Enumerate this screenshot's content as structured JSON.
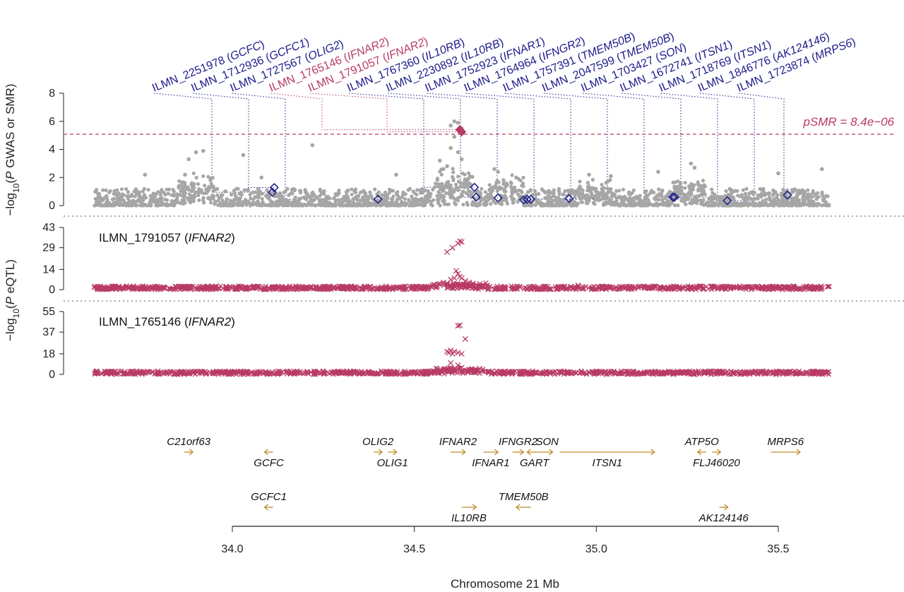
{
  "colors": {
    "gwas_points": "#a6a6a6",
    "probe_marker": "#1c1c8c",
    "highlight": "#b83a66",
    "eqtl": "#b83a66",
    "gene_arrow": "#c08a2a",
    "axis": "#222222"
  },
  "chart_data": [
    {
      "type": "scatter",
      "panel": "gwas_smr",
      "ylabel": "−log10(P GWAS or SMR)",
      "ylabel_parts": [
        "−log",
        "10",
        "(",
        "P",
        " GWAS or SMR)"
      ],
      "yticks": [
        "0",
        "2",
        "4",
        "6",
        "8"
      ],
      "ylim": [
        0,
        8
      ],
      "xlim": [
        33.6,
        35.9
      ],
      "threshold": {
        "value": 5.08,
        "label": "pSMR = 8.4e−06"
      },
      "gwas_series": {
        "name": "",
        "description_only": false,
        "background_range": [
          33.62,
          35.64
        ],
        "background_level": [
          0,
          1.1
        ],
        "peaks": [
          {
            "x": 34.61,
            "y": 6.0
          },
          {
            "x": 34.62,
            "y": 5.9
          },
          {
            "x": 34.6,
            "y": 5.7
          },
          {
            "x": 34.63,
            "y": 5.5
          },
          {
            "x": 34.61,
            "y": 4.9
          },
          {
            "x": 34.6,
            "y": 4.1
          },
          {
            "x": 34.62,
            "y": 3.8
          },
          {
            "x": 34.63,
            "y": 3.3
          },
          {
            "x": 34.59,
            "y": 2.8
          },
          {
            "x": 33.92,
            "y": 3.9
          },
          {
            "x": 33.9,
            "y": 3.8
          },
          {
            "x": 33.88,
            "y": 3.3
          },
          {
            "x": 33.87,
            "y": 2.2
          },
          {
            "x": 34.03,
            "y": 3.6
          },
          {
            "x": 34.22,
            "y": 4.3
          },
          {
            "x": 33.76,
            "y": 2.2
          },
          {
            "x": 34.57,
            "y": 3.2
          },
          {
            "x": 34.58,
            "y": 2.6
          },
          {
            "x": 34.72,
            "y": 2.6
          },
          {
            "x": 34.73,
            "y": 2.4
          },
          {
            "x": 34.78,
            "y": 2.0
          },
          {
            "x": 34.98,
            "y": 2.2
          },
          {
            "x": 35.04,
            "y": 2.1
          },
          {
            "x": 35.17,
            "y": 2.4
          },
          {
            "x": 35.26,
            "y": 3.0
          },
          {
            "x": 35.27,
            "y": 2.7
          },
          {
            "x": 35.5,
            "y": 2.3
          },
          {
            "x": 35.62,
            "y": 2.6
          },
          {
            "x": 34.45,
            "y": 2.2
          },
          {
            "x": 34.08,
            "y": 2.0
          }
        ]
      },
      "smr_probes": [
        {
          "probe": "ILMN_2251978",
          "gene": "GCFC",
          "x": 34.11,
          "y": 0.95,
          "highlight": false
        },
        {
          "probe": "ILMN_1712936",
          "gene": "GCFC1",
          "x": 34.115,
          "y": 1.28,
          "highlight": false
        },
        {
          "probe": "ILMN_1727567",
          "gene": "OLIG2",
          "x": 34.4,
          "y": 0.45,
          "highlight": false
        },
        {
          "probe": "ILMN_1765146",
          "gene": "IFNAR2",
          "x": 34.625,
          "y": 5.4,
          "highlight": true
        },
        {
          "probe": "ILMN_1791057",
          "gene": "IFNAR2",
          "x": 34.63,
          "y": 5.25,
          "highlight": true
        },
        {
          "probe": "ILMN_1767360",
          "gene": "IL10RB",
          "x": 34.665,
          "y": 1.3,
          "highlight": false
        },
        {
          "probe": "ILMN_2230892",
          "gene": "IL10RB",
          "x": 34.67,
          "y": 0.6,
          "highlight": false
        },
        {
          "probe": "ILMN_1752923",
          "gene": "IFNAR1",
          "x": 34.73,
          "y": 0.55,
          "highlight": false
        },
        {
          "probe": "ILMN_1764964",
          "gene": "IFNGR2",
          "x": 34.8,
          "y": 0.4,
          "highlight": false
        },
        {
          "probe": "ILMN_1757391",
          "gene": "TMEM50B",
          "x": 34.81,
          "y": 0.45,
          "highlight": false
        },
        {
          "probe": "ILMN_2047599",
          "gene": "TMEM50B",
          "x": 34.82,
          "y": 0.45,
          "highlight": false
        },
        {
          "probe": "ILMN_1703427",
          "gene": "SON",
          "x": 34.925,
          "y": 0.5,
          "highlight": false
        },
        {
          "probe": "ILMN_1672741",
          "gene": "ITSN1",
          "x": 35.21,
          "y": 0.6,
          "highlight": false
        },
        {
          "probe": "ILMN_1718769",
          "gene": "ITSN1",
          "x": 35.215,
          "y": 0.6,
          "highlight": false
        },
        {
          "probe": "ILMN_1846776",
          "gene": "AK124146",
          "x": 35.36,
          "y": 0.35,
          "highlight": false
        },
        {
          "probe": "ILMN_1723874",
          "gene": "MRPS6",
          "x": 35.525,
          "y": 0.75,
          "highlight": false
        }
      ]
    },
    {
      "type": "scatter",
      "panel": "eqtl_1",
      "title_probe": "ILMN_1791057",
      "title_gene": "IFNAR2",
      "yticks": [
        "0",
        "14",
        "29",
        "43"
      ],
      "ylim": [
        0,
        43
      ],
      "peaks": [
        {
          "x": 34.625,
          "y": 33.5
        },
        {
          "x": 34.62,
          "y": 32
        },
        {
          "x": 34.63,
          "y": 33
        },
        {
          "x": 34.605,
          "y": 29
        },
        {
          "x": 34.59,
          "y": 26
        },
        {
          "x": 34.615,
          "y": 13
        },
        {
          "x": 34.62,
          "y": 11
        },
        {
          "x": 34.625,
          "y": 9
        },
        {
          "x": 34.61,
          "y": 8
        },
        {
          "x": 34.6,
          "y": 7
        },
        {
          "x": 34.63,
          "y": 8
        },
        {
          "x": 34.64,
          "y": 6
        },
        {
          "x": 34.58,
          "y": 5
        },
        {
          "x": 34.57,
          "y": 4
        },
        {
          "x": 34.65,
          "y": 5
        },
        {
          "x": 34.55,
          "y": 3
        },
        {
          "x": 34.66,
          "y": 3
        },
        {
          "x": 34.68,
          "y": 4
        },
        {
          "x": 34.7,
          "y": 3
        },
        {
          "x": 34.95,
          "y": 3
        }
      ],
      "background_range": [
        33.62,
        35.64
      ],
      "background_level": [
        0,
        2.5
      ]
    },
    {
      "type": "scatter",
      "panel": "eqtl_2",
      "title_probe": "ILMN_1765146",
      "title_gene": "IFNAR2",
      "yticks": [
        "0",
        "18",
        "37",
        "55"
      ],
      "ylim": [
        0,
        55
      ],
      "peaks": [
        {
          "x": 34.62,
          "y": 42.5
        },
        {
          "x": 34.625,
          "y": 43
        },
        {
          "x": 34.64,
          "y": 31
        },
        {
          "x": 34.59,
          "y": 20
        },
        {
          "x": 34.6,
          "y": 21
        },
        {
          "x": 34.61,
          "y": 20
        },
        {
          "x": 34.62,
          "y": 19
        },
        {
          "x": 34.63,
          "y": 18
        },
        {
          "x": 34.595,
          "y": 19
        },
        {
          "x": 34.605,
          "y": 18
        },
        {
          "x": 34.6,
          "y": 10
        },
        {
          "x": 34.62,
          "y": 8
        },
        {
          "x": 34.63,
          "y": 6
        },
        {
          "x": 34.61,
          "y": 5
        },
        {
          "x": 34.58,
          "y": 4
        },
        {
          "x": 34.65,
          "y": 4
        },
        {
          "x": 34.68,
          "y": 5
        },
        {
          "x": 34.55,
          "y": 3
        }
      ],
      "background_range": [
        33.62,
        35.64
      ],
      "background_level": [
        0,
        3.0
      ]
    }
  ],
  "eqtl_ylabel_parts": [
    "−log",
    "10",
    "(",
    "P",
    " eQTL)"
  ],
  "genes": [
    {
      "name": "C21orf63",
      "start": 33.87,
      "end": 33.89,
      "strand": "+",
      "row": 0,
      "label_pos": "above"
    },
    {
      "name": "GCFC",
      "start": 34.09,
      "end": 34.11,
      "strand": "-",
      "row": 0,
      "label_pos": "below"
    },
    {
      "name": "OLIG2",
      "start": 34.39,
      "end": 34.41,
      "strand": "+",
      "row": 0,
      "label_pos": "above"
    },
    {
      "name": "OLIG1",
      "start": 34.43,
      "end": 34.45,
      "strand": "+",
      "row": 0,
      "label_pos": "below"
    },
    {
      "name": "IFNAR2",
      "start": 34.6,
      "end": 34.64,
      "strand": "+",
      "row": 0,
      "label_pos": "above"
    },
    {
      "name": "IFNAR1",
      "start": 34.69,
      "end": 34.73,
      "strand": "+",
      "row": 0,
      "label_pos": "below"
    },
    {
      "name": "IFNGR2",
      "start": 34.77,
      "end": 34.8,
      "strand": "+",
      "row": 0,
      "label_pos": "above"
    },
    {
      "name": "SON",
      "start": 34.85,
      "end": 34.88,
      "strand": "+",
      "row": 0,
      "label_pos": "above"
    },
    {
      "name": "GART",
      "start": 34.81,
      "end": 34.85,
      "strand": "-",
      "row": 0,
      "label_pos": "below"
    },
    {
      "name": "ITSN1",
      "start": 34.9,
      "end": 35.16,
      "strand": "+",
      "row": 0,
      "label_pos": "below"
    },
    {
      "name": "ATP5O",
      "start": 35.28,
      "end": 35.3,
      "strand": "-",
      "row": 0,
      "label_pos": "above"
    },
    {
      "name": "FLJ46020",
      "start": 35.32,
      "end": 35.34,
      "strand": "+",
      "row": 0,
      "label_pos": "below"
    },
    {
      "name": "MRPS6",
      "start": 35.48,
      "end": 35.56,
      "strand": "+",
      "row": 0,
      "label_pos": "above"
    },
    {
      "name": "GCFC1",
      "start": 34.09,
      "end": 34.11,
      "strand": "-",
      "row": 1,
      "label_pos": "above"
    },
    {
      "name": "IL10RB",
      "start": 34.63,
      "end": 34.67,
      "strand": "+",
      "row": 1,
      "label_pos": "below"
    },
    {
      "name": "TMEM50B",
      "start": 34.78,
      "end": 34.82,
      "strand": "-",
      "row": 1,
      "label_pos": "above"
    },
    {
      "name": "AK124146",
      "start": 35.34,
      "end": 35.36,
      "strand": "+",
      "row": 1,
      "label_pos": "below"
    }
  ],
  "xaxis": {
    "title": "Chromosome 21 Mb",
    "ticks": [
      {
        "value": 34.0,
        "label": "34.0"
      },
      {
        "value": 34.5,
        "label": "34.5"
      },
      {
        "value": 35.0,
        "label": "35.0"
      },
      {
        "value": 35.5,
        "label": "35.5"
      }
    ],
    "range": [
      34.0,
      35.5
    ]
  }
}
